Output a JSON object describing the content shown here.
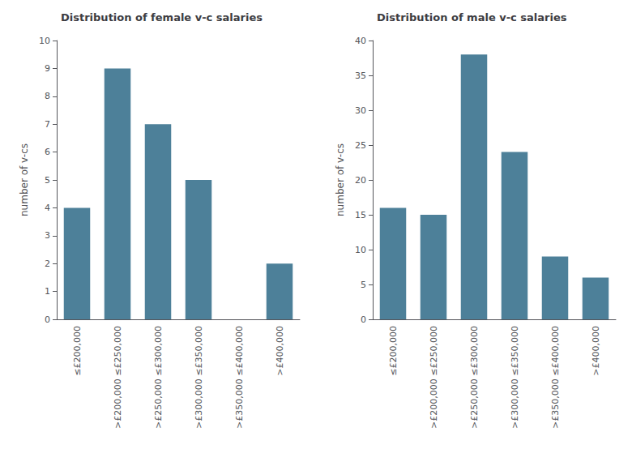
{
  "chart_data": [
    {
      "type": "bar",
      "title": "Distribution of female v-c salaries",
      "categories": [
        "≤£200,000",
        ">£200,000 ≤£250,000",
        ">£250,000 ≤£300,000",
        ">£300,000 ≤£350,000",
        ">£350,000 ≤£400,000",
        ">£400,000"
      ],
      "values": [
        4,
        9,
        7,
        5,
        0,
        2
      ],
      "color": "#4d8099",
      "ylabel": "number of v-cs",
      "ylim": [
        0,
        10
      ],
      "yticks": [
        0,
        1,
        2,
        3,
        4,
        5,
        6,
        7,
        8,
        9,
        10
      ],
      "grid": false
    },
    {
      "type": "bar",
      "title": "Distribution of male v-c salaries",
      "categories": [
        "≤£200,000",
        ">£200,000 ≤£250,000",
        ">£250,000 ≤£300,000",
        ">£300,000 ≤£350,000",
        ">£350,000 ≤£400,000",
        ">£400,000"
      ],
      "values": [
        16,
        15,
        38,
        24,
        9,
        6
      ],
      "color": "#4d8099",
      "ylabel": "number of v-cs",
      "ylim": [
        0,
        40
      ],
      "yticks": [
        0,
        5,
        10,
        15,
        20,
        25,
        30,
        35,
        40
      ],
      "grid": false
    }
  ]
}
